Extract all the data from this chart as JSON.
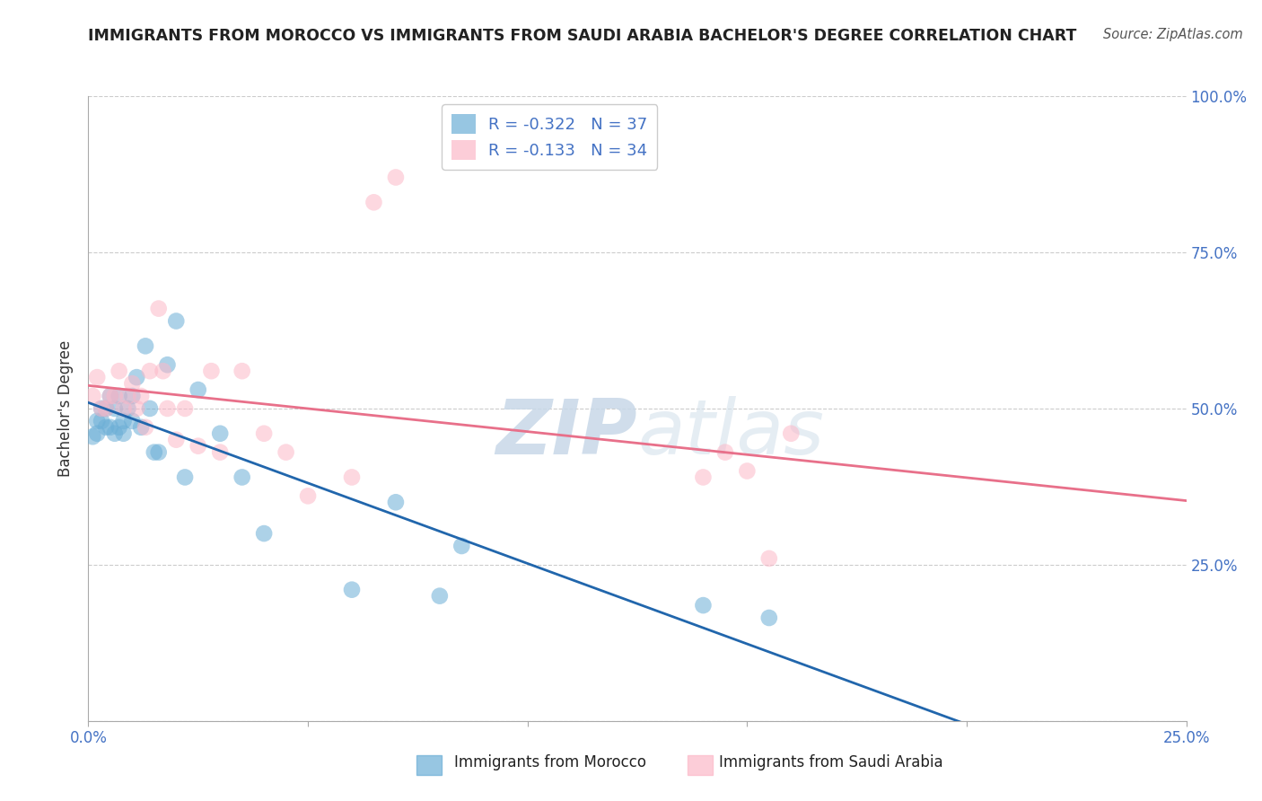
{
  "title": "IMMIGRANTS FROM MOROCCO VS IMMIGRANTS FROM SAUDI ARABIA BACHELOR'S DEGREE CORRELATION CHART",
  "source": "Source: ZipAtlas.com",
  "ylabel": "Bachelor's Degree",
  "xlim": [
    0.0,
    0.25
  ],
  "ylim": [
    0.0,
    1.0
  ],
  "morocco_color": "#6baed6",
  "saudi_color": "#fcb8c8",
  "morocco_R": -0.322,
  "morocco_N": 37,
  "saudi_R": -0.133,
  "saudi_N": 34,
  "trend_morocco_color": "#2166ac",
  "trend_saudi_color": "#e8708a",
  "watermark_zip": "ZIP",
  "watermark_atlas": "atlas",
  "legend_label_morocco": "Immigrants from Morocco",
  "legend_label_saudi": "Immigrants from Saudi Arabia",
  "morocco_x": [
    0.001,
    0.002,
    0.002,
    0.003,
    0.003,
    0.004,
    0.004,
    0.005,
    0.005,
    0.006,
    0.006,
    0.007,
    0.007,
    0.008,
    0.008,
    0.009,
    0.01,
    0.01,
    0.011,
    0.012,
    0.013,
    0.014,
    0.015,
    0.016,
    0.018,
    0.02,
    0.022,
    0.025,
    0.03,
    0.035,
    0.04,
    0.06,
    0.07,
    0.08,
    0.085,
    0.14,
    0.155
  ],
  "morocco_y": [
    0.455,
    0.46,
    0.48,
    0.48,
    0.5,
    0.47,
    0.5,
    0.52,
    0.47,
    0.46,
    0.5,
    0.52,
    0.47,
    0.46,
    0.48,
    0.5,
    0.48,
    0.52,
    0.55,
    0.47,
    0.6,
    0.5,
    0.43,
    0.43,
    0.57,
    0.64,
    0.39,
    0.53,
    0.46,
    0.39,
    0.3,
    0.21,
    0.35,
    0.2,
    0.28,
    0.185,
    0.165
  ],
  "saudi_x": [
    0.001,
    0.002,
    0.003,
    0.004,
    0.005,
    0.006,
    0.007,
    0.008,
    0.009,
    0.01,
    0.011,
    0.012,
    0.013,
    0.014,
    0.016,
    0.017,
    0.018,
    0.02,
    0.022,
    0.025,
    0.028,
    0.03,
    0.035,
    0.04,
    0.045,
    0.05,
    0.06,
    0.065,
    0.07,
    0.14,
    0.145,
    0.15,
    0.155,
    0.16
  ],
  "saudi_y": [
    0.52,
    0.55,
    0.5,
    0.5,
    0.52,
    0.52,
    0.56,
    0.5,
    0.52,
    0.54,
    0.5,
    0.52,
    0.47,
    0.56,
    0.66,
    0.56,
    0.5,
    0.45,
    0.5,
    0.44,
    0.56,
    0.43,
    0.56,
    0.46,
    0.43,
    0.36,
    0.39,
    0.83,
    0.87,
    0.39,
    0.43,
    0.4,
    0.26,
    0.46
  ],
  "dot_size": 180
}
